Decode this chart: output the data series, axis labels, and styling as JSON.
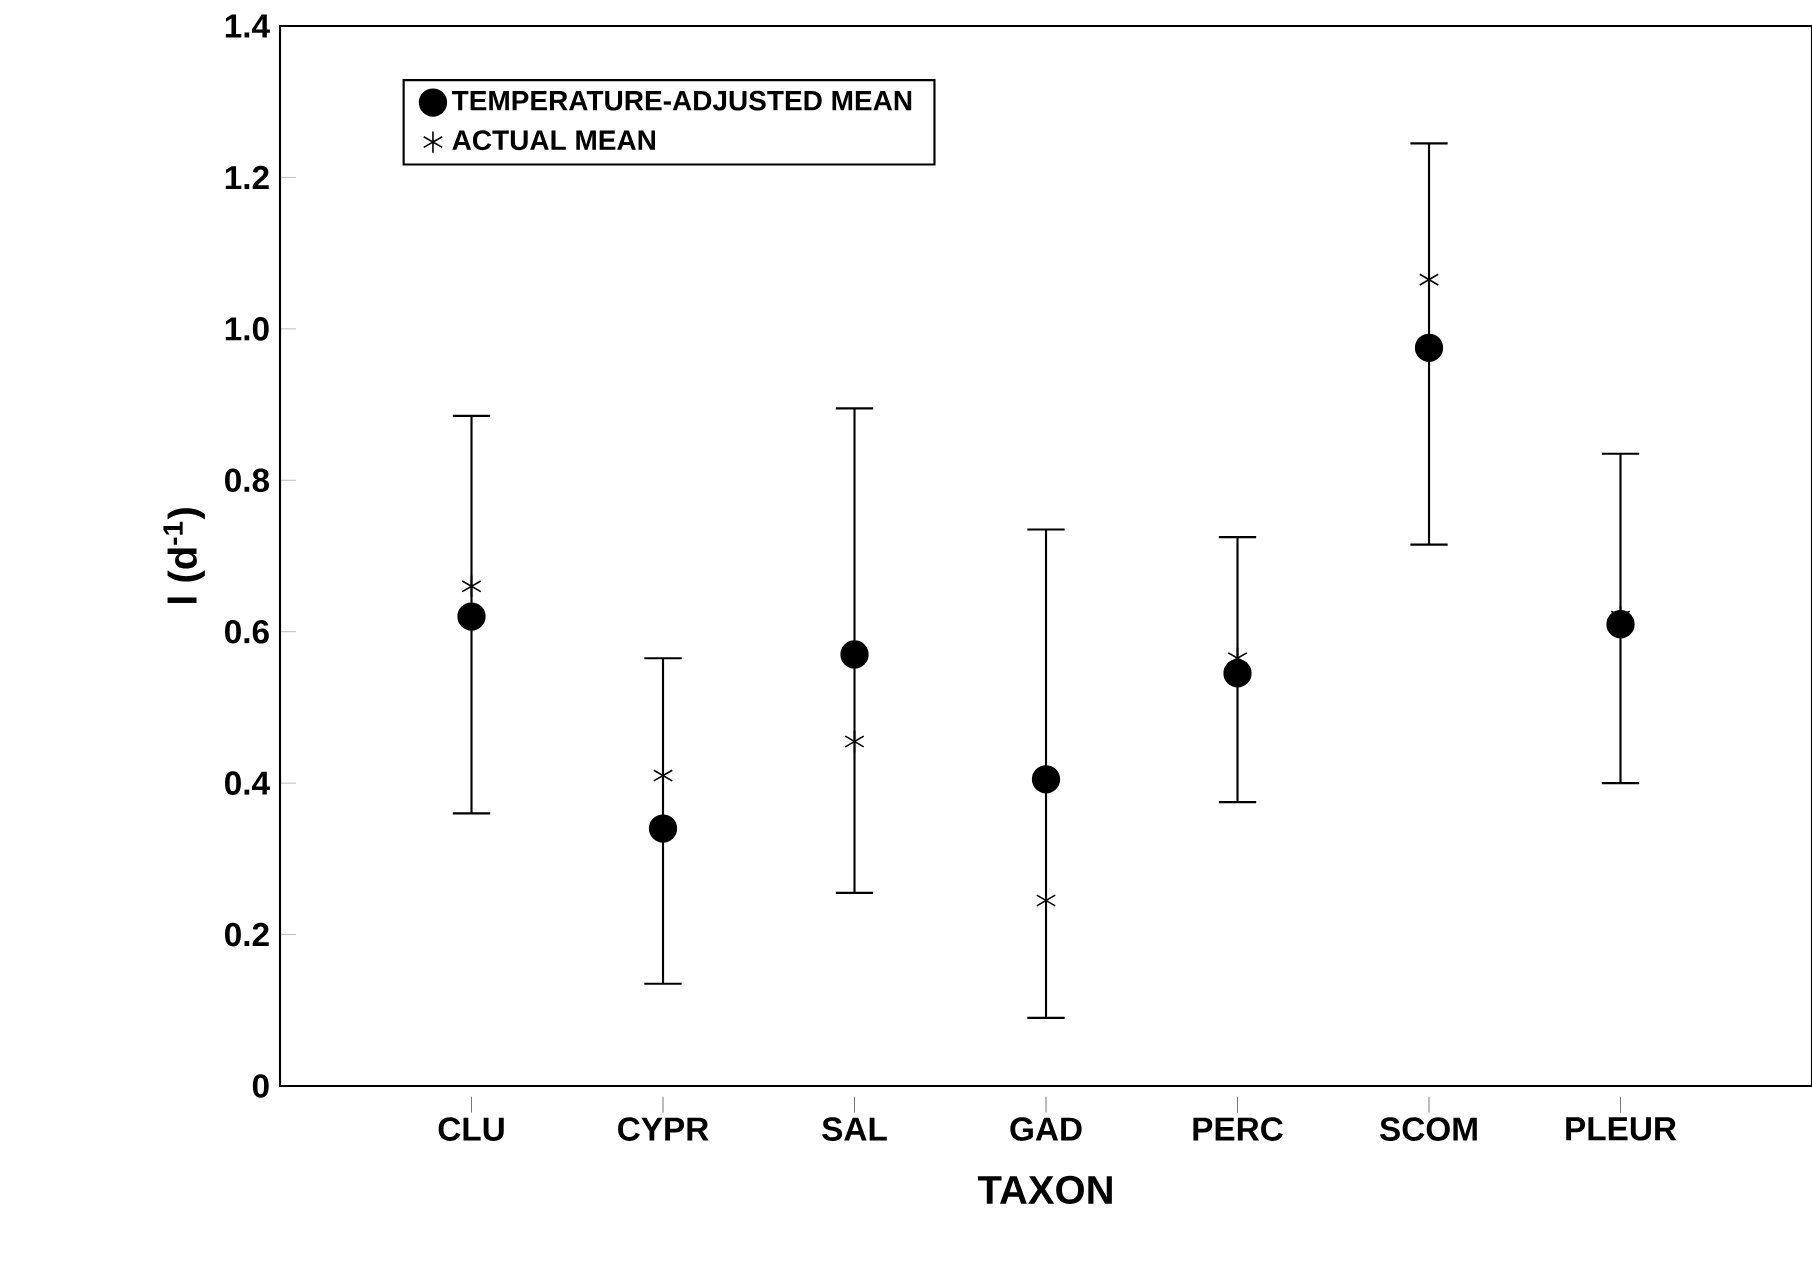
{
  "chart_data": {
    "type": "scatter",
    "xlabel": "TAXON",
    "ylabel": "l (d$^{-1}$)",
    "categories": [
      "CLU",
      "CYPR",
      "SAL",
      "GAD",
      "PERC",
      "SCOM",
      "PLEUR"
    ],
    "series": [
      {
        "name": "TEMPERATURE-ADJUSTED MEAN",
        "color": "#000000",
        "marker": "circle",
        "values": [
          0.62,
          0.34,
          0.57,
          0.405,
          0.545,
          0.975,
          0.61
        ],
        "errors": [
          [
            0.36,
            0.885
          ],
          [
            0.135,
            0.565
          ],
          [
            0.255,
            0.895
          ],
          [
            0.09,
            0.735
          ],
          [
            0.375,
            0.725
          ],
          [
            0.715,
            1.245
          ],
          [
            0.4,
            0.835
          ]
        ]
      },
      {
        "name": "ACTUAL MEAN",
        "color": "#000000",
        "marker": "cross",
        "values": [
          0.66,
          0.41,
          0.455,
          0.245,
          0.565,
          1.065,
          0.62
        ]
      }
    ],
    "ylim": [
      0,
      1.4
    ],
    "yticks": [
      0,
      0.2,
      0.4,
      0.6,
      0.8,
      {
        "value": 1,
        "label": "1.0"
      },
      1.2,
      1.4
    ],
    "grid": false,
    "legend": "top left"
  }
}
